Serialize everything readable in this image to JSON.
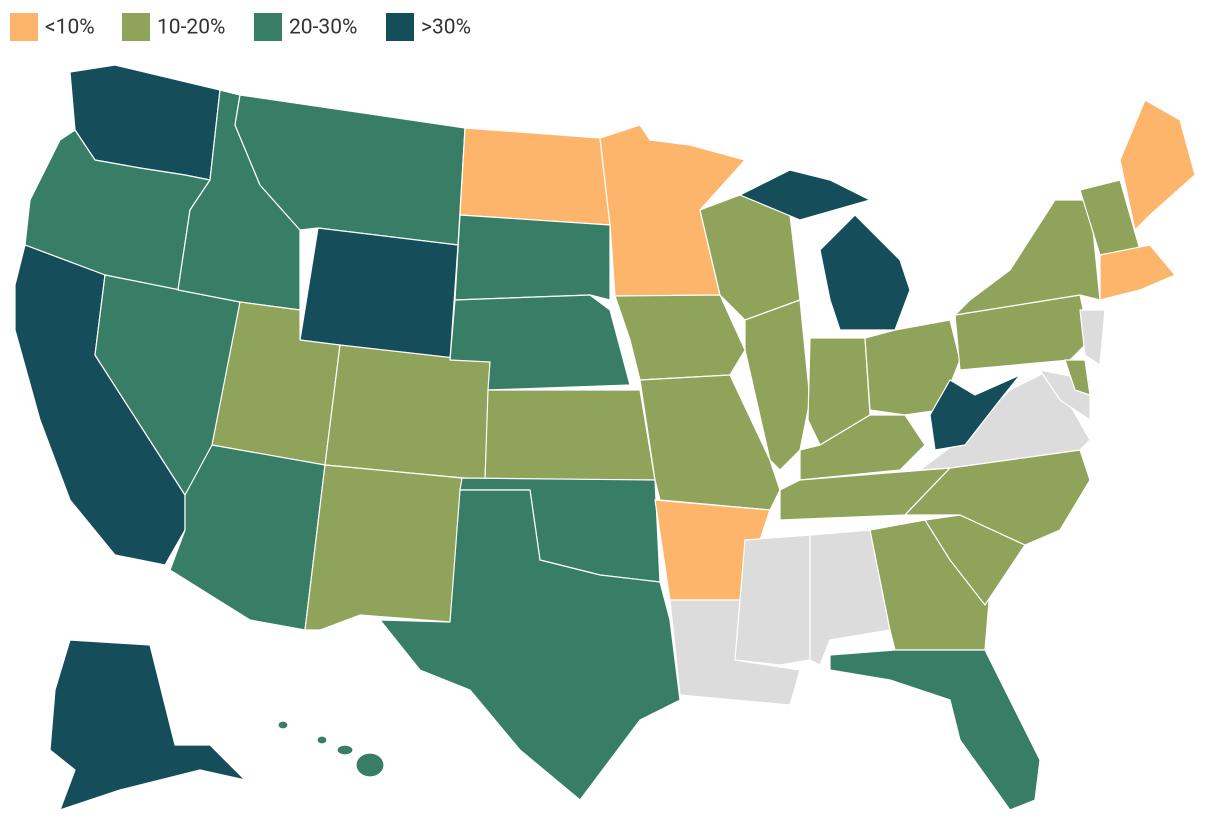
{
  "legend": [
    {
      "label": "<10%",
      "color": "#fdb56b"
    },
    {
      "label": "10-20%",
      "color": "#8fa35a"
    },
    {
      "label": "20-30%",
      "color": "#387d65"
    },
    {
      "label": ">30%",
      "color": "#154e5a"
    }
  ]
}
